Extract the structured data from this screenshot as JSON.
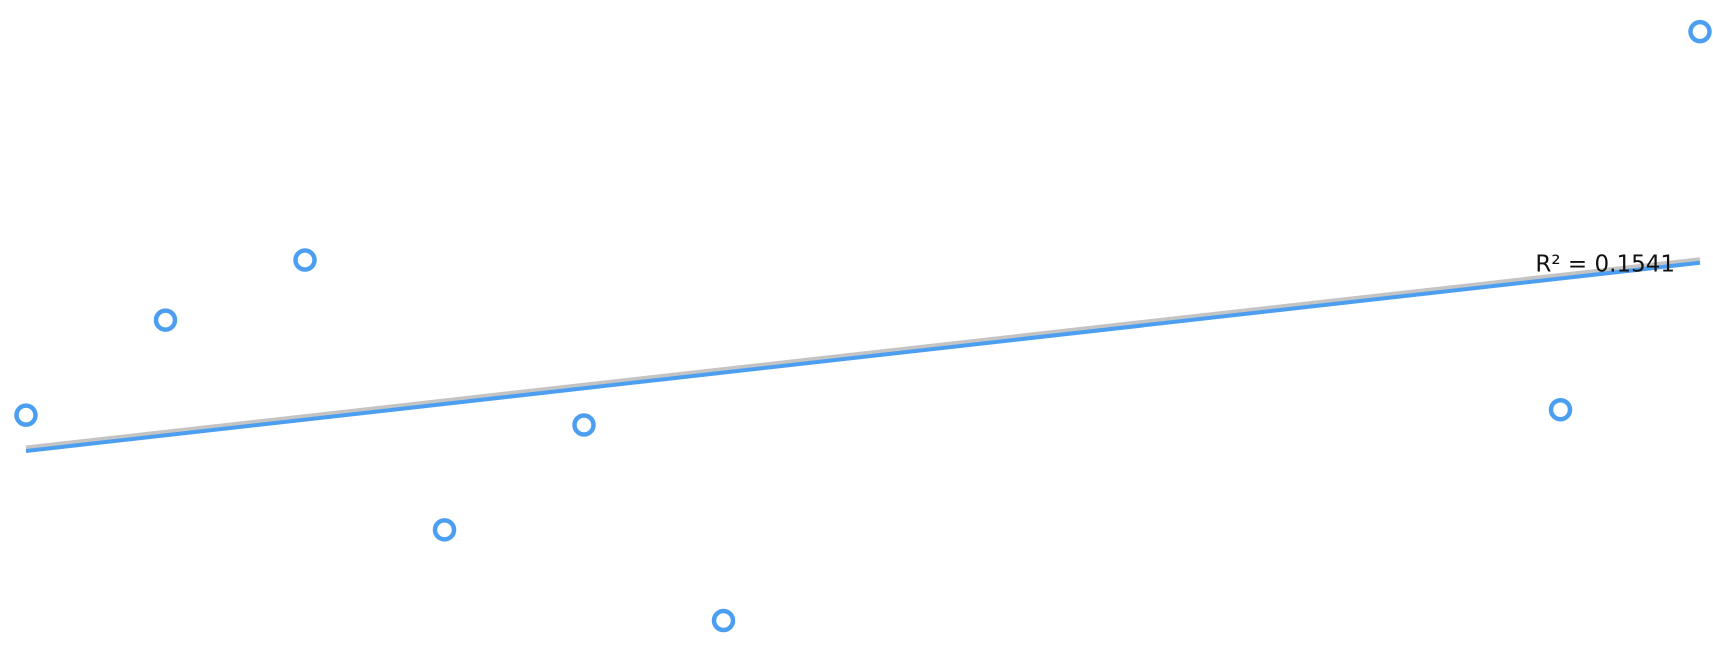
{
  "chart_data": {
    "type": "scatter",
    "x": [
      0,
      1,
      2,
      3,
      4,
      5,
      11,
      12
    ],
    "series": [
      {
        "color": "#4c9ff0",
        "values": [
          22,
          30.7,
          36.2,
          11.5,
          21.1,
          3.2,
          22.5,
          57.1
        ]
      }
    ],
    "xlim": [
      0,
      12
    ],
    "ylim": [
      0,
      60
    ],
    "trendline": {
      "type": "linear",
      "color": "#4c9ff0",
      "shadow_color": "#c4c4c4",
      "annotation": "R² = 0.1541"
    }
  }
}
